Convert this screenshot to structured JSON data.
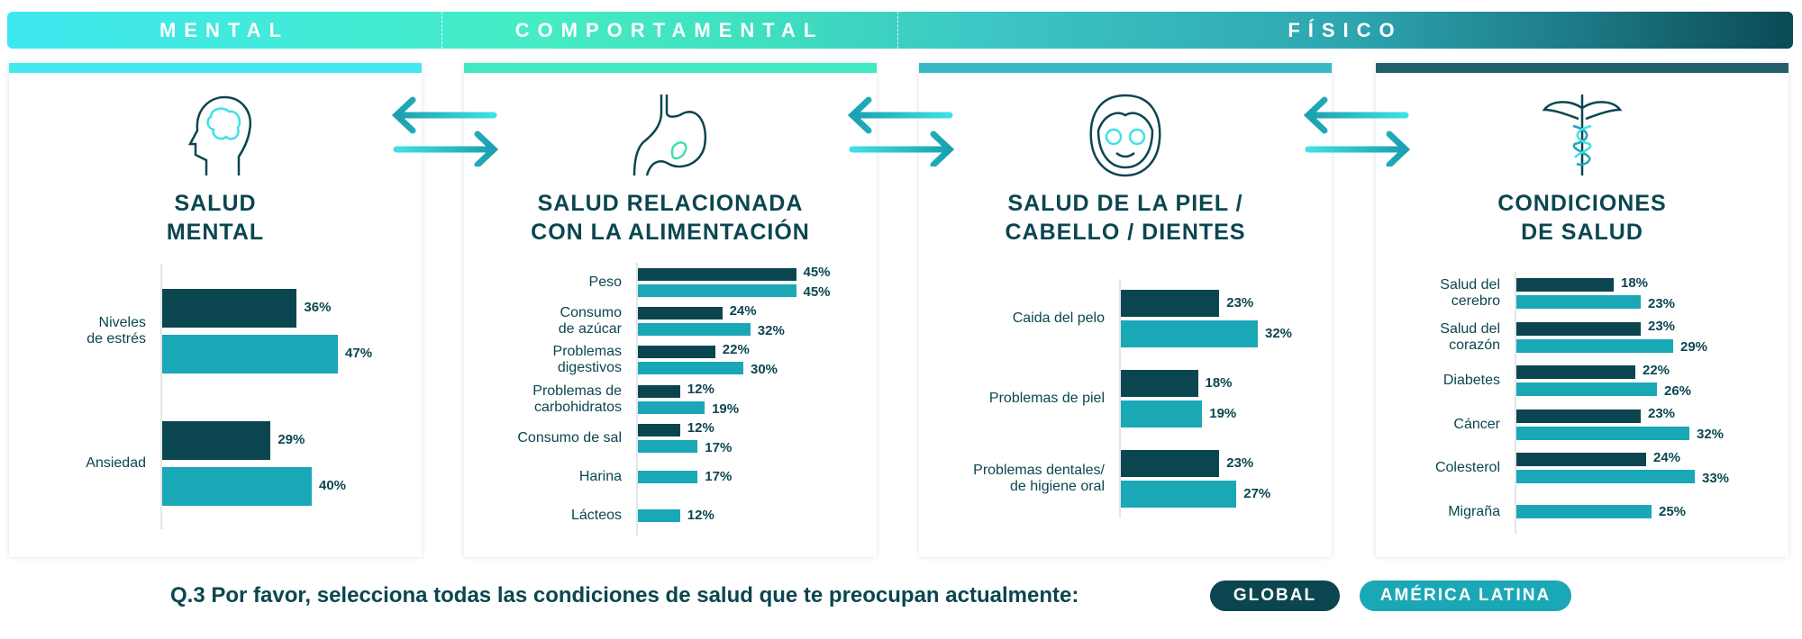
{
  "header": {
    "segments": [
      {
        "label": "MENTAL"
      },
      {
        "label": "COMPORTAMENTAL"
      },
      {
        "label": "FÍSICO"
      }
    ]
  },
  "colors": {
    "global": "#0b4650",
    "latam": "#1aa7b6",
    "stripes": [
      "#44e9ef",
      "#3fe9c2",
      "#3bb8c8",
      "#23606a"
    ]
  },
  "panels": [
    {
      "title": "SALUD\nMENTAL",
      "icon": "head-brain-icon",
      "rows": [
        {
          "label": "Niveles\nde estrés",
          "global": 36,
          "latam": 47
        },
        {
          "label": "Ansiedad",
          "global": 29,
          "latam": 40
        }
      ]
    },
    {
      "title": "SALUD RELACIONADA\nCON LA ALIMENTACIÓN",
      "icon": "stomach-icon",
      "rows": [
        {
          "label": "Peso",
          "global": 45,
          "latam": 45
        },
        {
          "label": "Consumo\nde azúcar",
          "global": 24,
          "latam": 32
        },
        {
          "label": "Problemas\ndigestivos",
          "global": 22,
          "latam": 30
        },
        {
          "label": "Problemas de\ncarbohidratos",
          "global": 12,
          "latam": 19
        },
        {
          "label": "Consumo de sal",
          "global": 12,
          "latam": 17
        },
        {
          "label": "Harina",
          "global": null,
          "latam": 17
        },
        {
          "label": "Lácteos",
          "global": null,
          "latam": 12
        }
      ]
    },
    {
      "title": "SALUD DE LA PIEL /\nCABELLO / DIENTES",
      "icon": "face-mask-icon",
      "rows": [
        {
          "label": "Caida del pelo",
          "global": 23,
          "latam": 32
        },
        {
          "label": "Problemas de piel",
          "global": 18,
          "latam": 19
        },
        {
          "label": "Problemas dentales/\nde higiene oral",
          "global": 23,
          "latam": 27
        }
      ]
    },
    {
      "title": "CONDICIONES\nDE SALUD",
      "icon": "caduceus-icon",
      "rows": [
        {
          "label": "Salud del\ncerebro",
          "global": 18,
          "latam": 23
        },
        {
          "label": "Salud del\ncorazón",
          "global": 23,
          "latam": 29
        },
        {
          "label": "Diabetes",
          "global": 22,
          "latam": 26
        },
        {
          "label": "Cáncer",
          "global": 23,
          "latam": 32
        },
        {
          "label": "Colesterol",
          "global": 24,
          "latam": 33
        },
        {
          "label": "Migraña",
          "global": null,
          "latam": 25
        }
      ]
    }
  ],
  "footer": {
    "question": "Q.3 Por favor, selecciona todas las condiciones de salud que te preocupan actualmente:",
    "legend": [
      {
        "label": "GLOBAL"
      },
      {
        "label": "AMÉRICA LATINA"
      }
    ]
  }
}
